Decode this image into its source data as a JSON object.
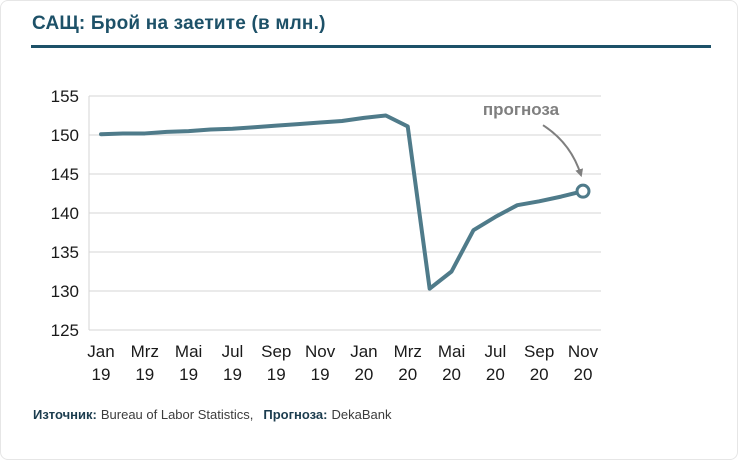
{
  "header": {
    "title": "САЩ: Брой на заетите (в млн.)"
  },
  "footer": {
    "source_label": "Източник:",
    "source_value": "Bureau of Labor Statistics,",
    "forecast_label": "Прогноза:",
    "forecast_value": "DekaBank"
  },
  "colors": {
    "accent": "#1d5168",
    "line": "#4f7b8a",
    "grid": "#d6d6d6",
    "axis_text": "#1a1a1a",
    "annotation": "#7f7f7f"
  },
  "chart_data": {
    "type": "line",
    "title": "САЩ: Брой на заетите (в млн.)",
    "x": [
      "Jan 19",
      "Feb 19",
      "Mrz 19",
      "Apr 19",
      "Mai 19",
      "Jun 19",
      "Jul 19",
      "Aug 19",
      "Sep 19",
      "Okt 19",
      "Nov 19",
      "Dez 19",
      "Jan 20",
      "Feb 20",
      "Mrz 20",
      "Apr 20",
      "Mai 20",
      "Jun 20",
      "Jul 20",
      "Aug 20",
      "Sep 20",
      "Okt 20",
      "Nov 20"
    ],
    "values": [
      150.1,
      150.2,
      150.2,
      150.4,
      150.5,
      150.7,
      150.8,
      151.0,
      151.2,
      151.4,
      151.6,
      151.8,
      152.2,
      152.5,
      151.1,
      130.3,
      132.5,
      137.8,
      139.5,
      141.0,
      141.5,
      142.1,
      142.8
    ],
    "ylim": [
      125,
      155
    ],
    "yticks": [
      125,
      130,
      135,
      140,
      145,
      150,
      155
    ],
    "xticks": [
      {
        "index": 0,
        "month": "Jan",
        "year": "19"
      },
      {
        "index": 2,
        "month": "Mrz",
        "year": "19"
      },
      {
        "index": 4,
        "month": "Mai",
        "year": "19"
      },
      {
        "index": 6,
        "month": "Jul",
        "year": "19"
      },
      {
        "index": 8,
        "month": "Sep",
        "year": "19"
      },
      {
        "index": 10,
        "month": "Nov",
        "year": "19"
      },
      {
        "index": 12,
        "month": "Jan",
        "year": "20"
      },
      {
        "index": 14,
        "month": "Mrz",
        "year": "20"
      },
      {
        "index": 16,
        "month": "Mai",
        "year": "20"
      },
      {
        "index": 18,
        "month": "Jul",
        "year": "20"
      },
      {
        "index": 20,
        "month": "Sep",
        "year": "20"
      },
      {
        "index": 22,
        "month": "Nov",
        "year": "20"
      }
    ],
    "grid": "horizontal",
    "legend": "none",
    "annotation": "прогноза",
    "last_point_is_forecast": true
  }
}
